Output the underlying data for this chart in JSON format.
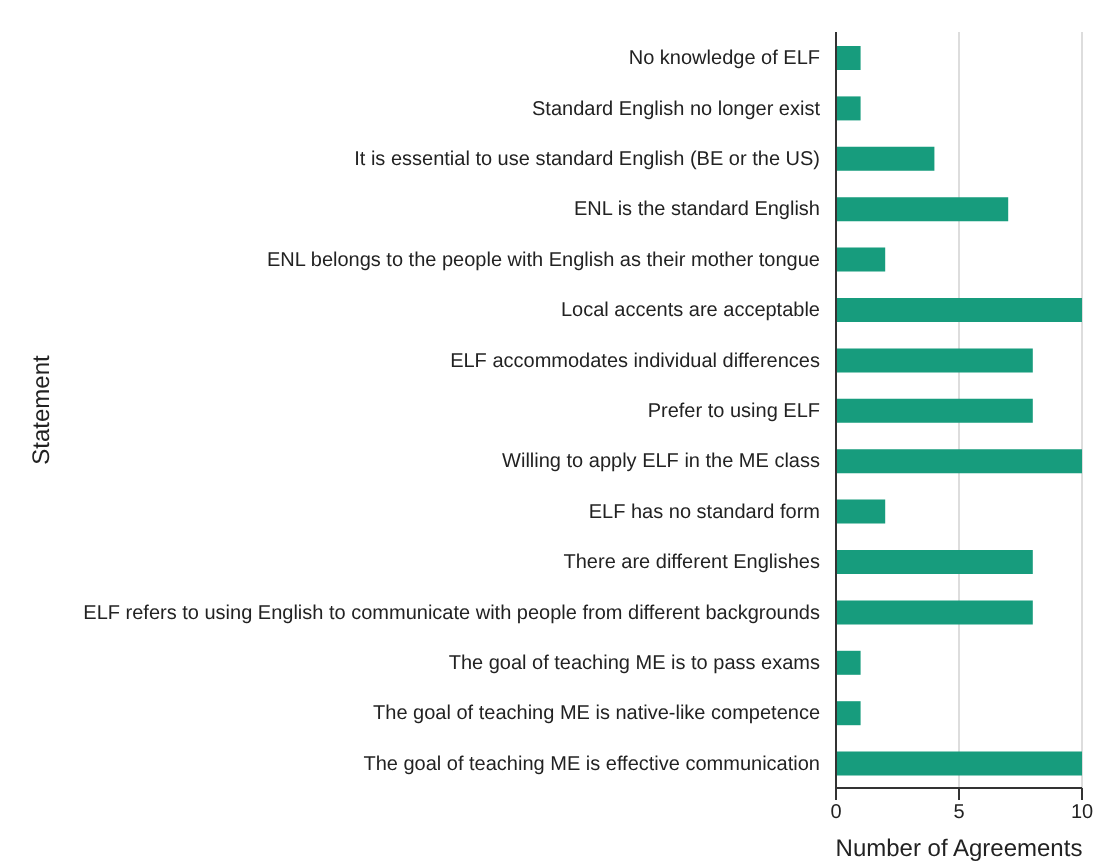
{
  "chart_data": {
    "type": "bar",
    "orientation": "horizontal",
    "xlabel": "Number of Agreements",
    "ylabel": "Statement",
    "categories": [
      "No knowledge of ELF",
      "Standard English no longer exist",
      "It is essential to use standard English (BE or the US)",
      "ENL is the standard English",
      "ENL belongs to the people with English as their mother tongue",
      "Local accents are acceptable",
      "ELF accommodates individual differences",
      "Prefer to using ELF",
      "Willing to apply ELF in the ME class",
      "ELF has no standard form",
      "There are different Englishes",
      "ELF refers to using English to communicate with people from different backgrounds",
      "The goal of teaching ME is to pass exams",
      "The goal of teaching ME is native-like competence",
      "The goal of teaching ME is effective communication"
    ],
    "values": [
      1,
      1,
      4,
      7,
      2,
      10,
      8,
      8,
      10,
      2,
      8,
      8,
      1,
      1,
      10
    ],
    "color": "#179c7d",
    "xlim": [
      0,
      10
    ],
    "xticks": [
      0,
      5,
      10
    ],
    "grid": "x",
    "legend": false
  }
}
